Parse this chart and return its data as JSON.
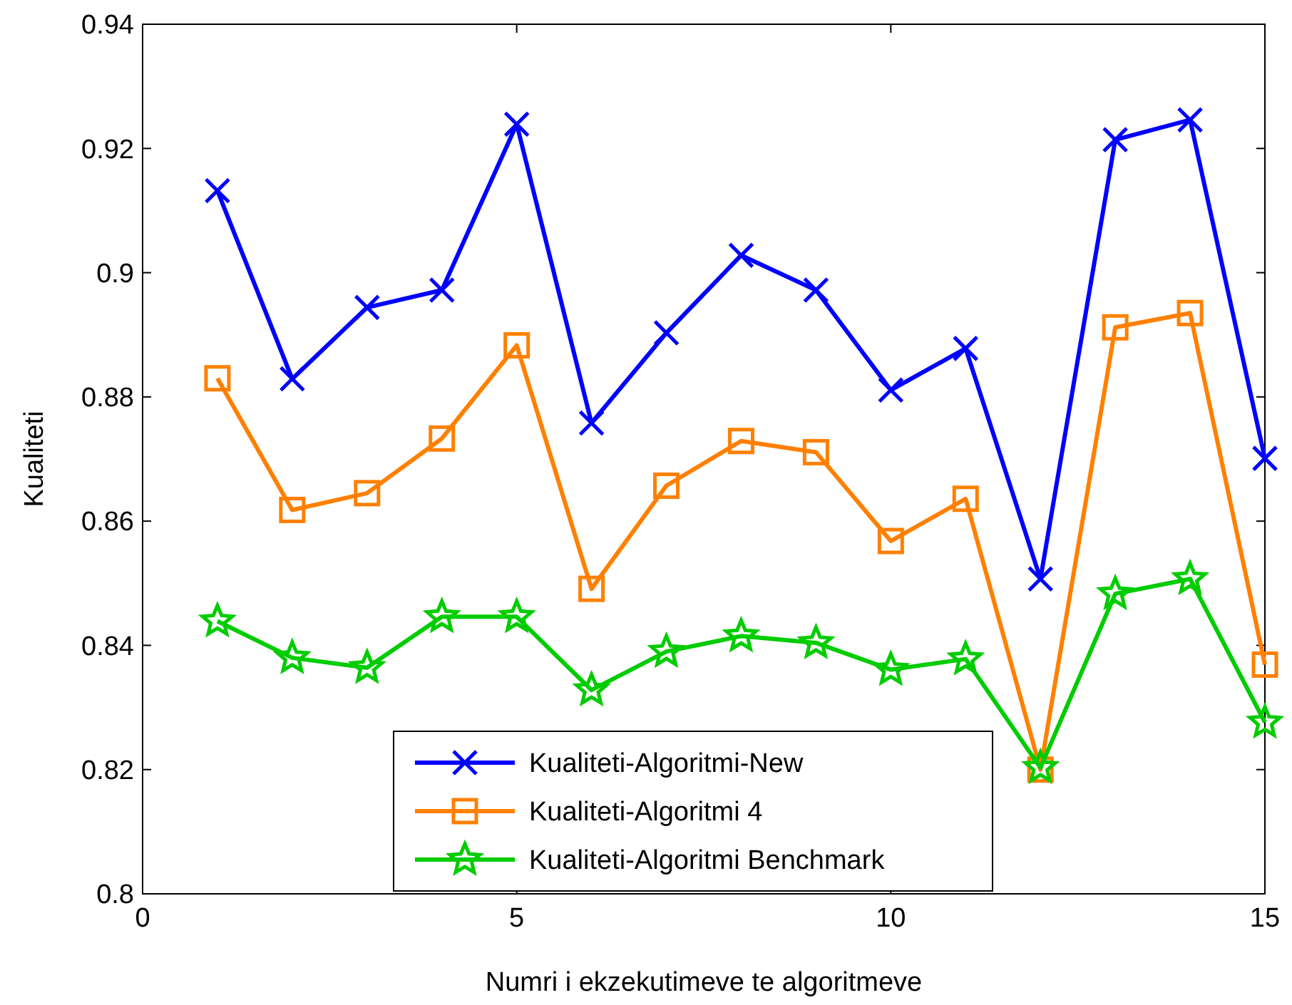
{
  "chart_data": {
    "type": "line",
    "xlabel": "Numri i ekzekutimeve te algoritmeve",
    "ylabel": "Kualiteti",
    "x": [
      1,
      2,
      3,
      4,
      5,
      6,
      7,
      8,
      9,
      10,
      11,
      12,
      13,
      14,
      15
    ],
    "xlim": [
      0,
      15
    ],
    "xticks": [
      0,
      5,
      10,
      15
    ],
    "ylim": [
      0.8,
      0.94
    ],
    "yticks": [
      0.8,
      0.82,
      0.84,
      0.86,
      0.88,
      0.9,
      0.92,
      0.94
    ],
    "grid": false,
    "legend": "bottom",
    "series": [
      {
        "name": "Kualiteti-Algoritmi-New",
        "color": "#0000ff",
        "marker": "cross",
        "values": [
          0.9132,
          0.8829,
          0.8944,
          0.8972,
          0.9239,
          0.8758,
          0.8903,
          0.9028,
          0.8972,
          0.8811,
          0.8878,
          0.8507,
          0.9214,
          0.9246,
          0.8701
        ]
      },
      {
        "name": "Kualiteti-Algoritmi 4",
        "color": "#ff8000",
        "marker": "square",
        "values": [
          0.883,
          0.8618,
          0.8645,
          0.8733,
          0.8883,
          0.8491,
          0.8657,
          0.8729,
          0.8711,
          0.8568,
          0.8636,
          0.82,
          0.8912,
          0.8935,
          0.8369
        ]
      },
      {
        "name": "Kualiteti-Algoritmi Benchmark",
        "color": "#00cc00",
        "marker": "star",
        "values": [
          0.8439,
          0.838,
          0.8364,
          0.8446,
          0.8446,
          0.8328,
          0.839,
          0.8415,
          0.8404,
          0.8361,
          0.8378,
          0.8203,
          0.8483,
          0.8507,
          0.8276
        ]
      }
    ]
  }
}
